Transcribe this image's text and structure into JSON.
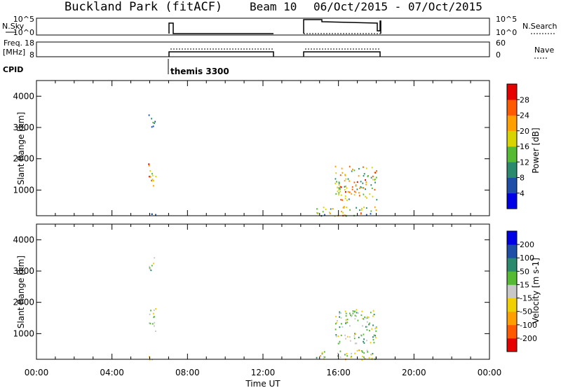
{
  "header": {
    "station": "Buckland Park (fitACF)",
    "beam": "Beam 10",
    "dates": "06/Oct/2015 - 07/Oct/2015"
  },
  "mini_panels": {
    "nsky_label": "N.Sky",
    "nsearch_label": "N.Search",
    "nsky_ticks": [
      "10^5",
      "10^0"
    ],
    "freq_label_1": "Freq.",
    "freq_label_2": "[MHz]",
    "freq_ticks": [
      "18",
      "8"
    ],
    "nave_label": "Nave",
    "nave_ticks": [
      "60",
      "0"
    ],
    "cpid_label": "CPID",
    "cpid_value": "themis 3300"
  },
  "chart_data": [
    {
      "type": "heatmap",
      "panel": "power",
      "ylabel": "Slant Range [km]",
      "xlabel": "",
      "xticks": [
        "00:00",
        "04:00",
        "08:00",
        "12:00",
        "16:00",
        "20:00",
        "00:00"
      ],
      "xlim_hours": [
        0,
        24
      ],
      "yticks": [
        1000,
        2000,
        3000,
        4000
      ],
      "ylim_km": [
        180,
        4500
      ],
      "colorbar": {
        "label": "Power [dB]",
        "ticks": [
          "28",
          "24",
          "20",
          "16",
          "12",
          "8",
          "4"
        ],
        "colors": [
          "#0000e6",
          "#1f4ea8",
          "#2a8a6e",
          "#55bb33",
          "#d8d400",
          "#ffa000",
          "#ff5a00",
          "#e60000"
        ]
      },
      "scatter_blocks": [
        {
          "t_start": 5.9,
          "t_end": 6.3,
          "r_start": 1100,
          "r_end": 1900,
          "c0": 3,
          "c1": 7
        },
        {
          "t_start": 5.9,
          "t_end": 6.3,
          "r_start": 3000,
          "r_end": 3450,
          "c0": 1,
          "c1": 3
        },
        {
          "t_start": 5.9,
          "t_end": 6.3,
          "r_start": 180,
          "r_end": 350,
          "c0": 0,
          "c1": 2
        },
        {
          "t_start": 14.8,
          "t_end": 18.0,
          "r_start": 180,
          "r_end": 500,
          "c0": 1,
          "c1": 6
        },
        {
          "t_start": 15.8,
          "t_end": 18.0,
          "r_start": 700,
          "r_end": 1800,
          "c0": 2,
          "c1": 7
        }
      ]
    },
    {
      "type": "heatmap",
      "panel": "velocity",
      "ylabel": "Slant Range [km]",
      "xlabel": "Time UT",
      "xticks": [
        "00:00",
        "04:00",
        "08:00",
        "12:00",
        "16:00",
        "20:00",
        "00:00"
      ],
      "xlim_hours": [
        0,
        24
      ],
      "yticks": [
        1000,
        2000,
        3000,
        4000
      ],
      "ylim_km": [
        180,
        4500
      ],
      "colorbar": {
        "label": "Velocity [m s-1]",
        "ticks": [
          "200",
          "100",
          "50",
          "15",
          "-15",
          "-50",
          "-100",
          "-200"
        ],
        "colors": [
          "#e60000",
          "#ff5a00",
          "#ffa000",
          "#f0d000",
          "#c8c8c8",
          "#55bb33",
          "#2a8a6e",
          "#1f4ea8",
          "#0000e6"
        ]
      },
      "scatter_blocks": [
        {
          "t_start": 5.9,
          "t_end": 6.3,
          "r_start": 1100,
          "r_end": 1900,
          "c0": 3,
          "c1": 5
        },
        {
          "t_start": 5.9,
          "t_end": 6.3,
          "r_start": 3000,
          "r_end": 3450,
          "c0": 3,
          "c1": 8
        },
        {
          "t_start": 5.9,
          "t_end": 6.3,
          "r_start": 180,
          "r_end": 350,
          "c0": 2,
          "c1": 6
        },
        {
          "t_start": 14.8,
          "t_end": 18.0,
          "r_start": 180,
          "r_end": 500,
          "c0": 2,
          "c1": 6
        },
        {
          "t_start": 15.8,
          "t_end": 18.0,
          "r_start": 700,
          "r_end": 1800,
          "c0": 3,
          "c1": 6
        }
      ]
    }
  ]
}
